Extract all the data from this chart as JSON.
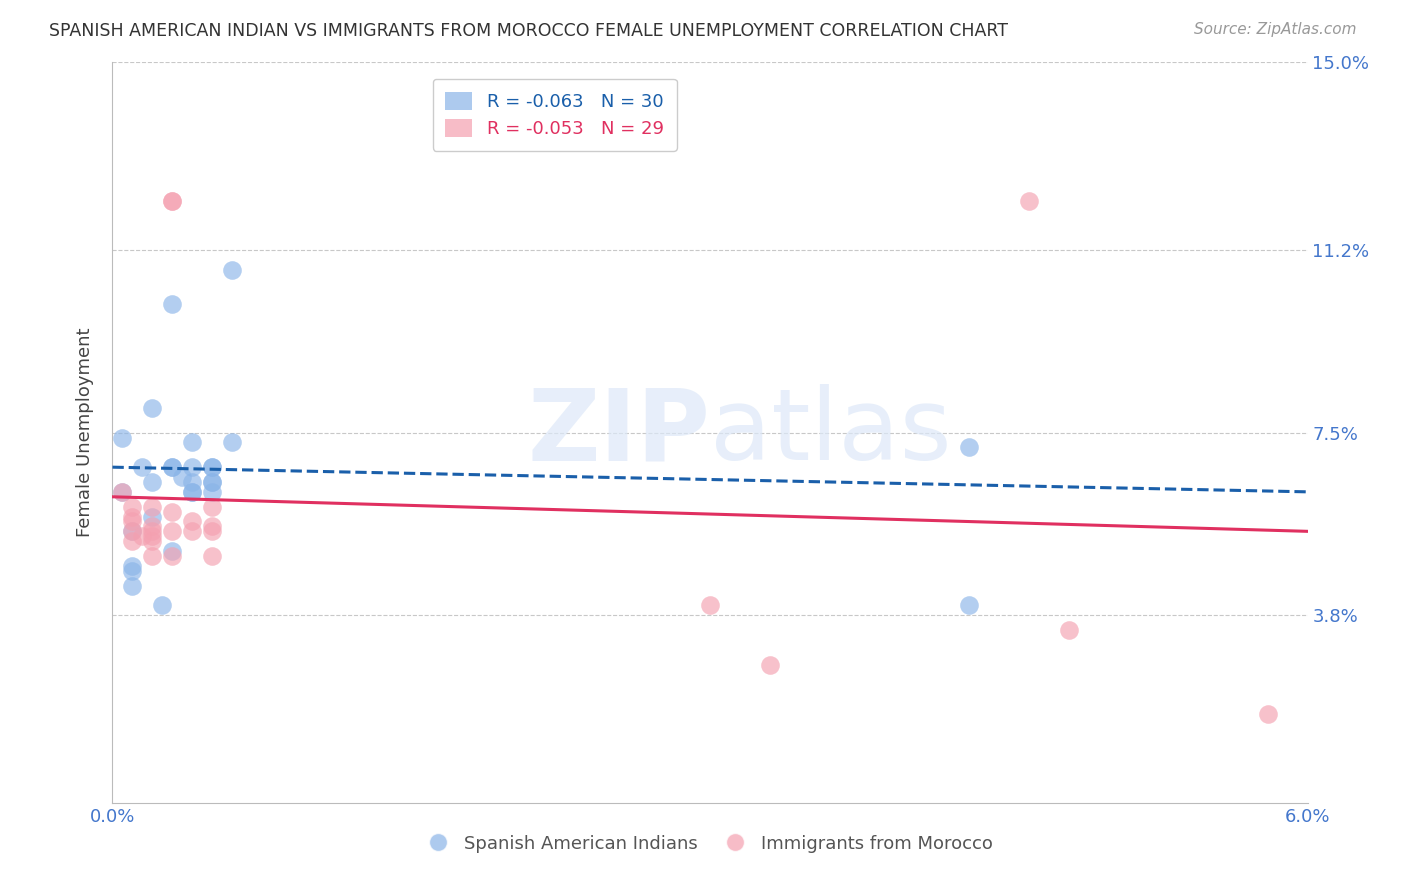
{
  "title": "SPANISH AMERICAN INDIAN VS IMMIGRANTS FROM MOROCCO FEMALE UNEMPLOYMENT CORRELATION CHART",
  "source": "Source: ZipAtlas.com",
  "ylabel": "Female Unemployment",
  "xlim": [
    0.0,
    0.06
  ],
  "ylim": [
    0.0,
    0.15
  ],
  "background_color": "#ffffff",
  "grid_color": "#c8c8c8",
  "watermark_zip": "ZIP",
  "watermark_atlas": "atlas",
  "blue_color": "#8ab4e8",
  "pink_color": "#f4a0b0",
  "blue_line_color": "#1a5faa",
  "pink_line_color": "#e03060",
  "axis_label_color": "#4477cc",
  "legend_label_blue": "Spanish American Indians",
  "legend_label_pink": "Immigrants from Morocco",
  "blue_R": -0.063,
  "blue_N": 30,
  "pink_R": -0.053,
  "pink_N": 29,
  "blue_points": [
    [
      0.0005,
      0.074
    ],
    [
      0.0005,
      0.063
    ],
    [
      0.001,
      0.055
    ],
    [
      0.001,
      0.048
    ],
    [
      0.001,
      0.047
    ],
    [
      0.001,
      0.044
    ],
    [
      0.0015,
      0.068
    ],
    [
      0.002,
      0.058
    ],
    [
      0.002,
      0.08
    ],
    [
      0.002,
      0.065
    ],
    [
      0.0025,
      0.04
    ],
    [
      0.003,
      0.051
    ],
    [
      0.003,
      0.068
    ],
    [
      0.003,
      0.068
    ],
    [
      0.003,
      0.101
    ],
    [
      0.0035,
      0.066
    ],
    [
      0.004,
      0.068
    ],
    [
      0.004,
      0.073
    ],
    [
      0.004,
      0.065
    ],
    [
      0.004,
      0.063
    ],
    [
      0.004,
      0.063
    ],
    [
      0.005,
      0.065
    ],
    [
      0.005,
      0.065
    ],
    [
      0.005,
      0.063
    ],
    [
      0.005,
      0.068
    ],
    [
      0.005,
      0.068
    ],
    [
      0.006,
      0.108
    ],
    [
      0.006,
      0.073
    ],
    [
      0.043,
      0.072
    ],
    [
      0.043,
      0.04
    ]
  ],
  "pink_points": [
    [
      0.0005,
      0.063
    ],
    [
      0.001,
      0.06
    ],
    [
      0.001,
      0.058
    ],
    [
      0.001,
      0.057
    ],
    [
      0.001,
      0.055
    ],
    [
      0.001,
      0.053
    ],
    [
      0.0015,
      0.054
    ],
    [
      0.002,
      0.06
    ],
    [
      0.002,
      0.056
    ],
    [
      0.002,
      0.055
    ],
    [
      0.002,
      0.054
    ],
    [
      0.002,
      0.053
    ],
    [
      0.002,
      0.05
    ],
    [
      0.003,
      0.122
    ],
    [
      0.003,
      0.122
    ],
    [
      0.003,
      0.059
    ],
    [
      0.003,
      0.055
    ],
    [
      0.003,
      0.05
    ],
    [
      0.004,
      0.057
    ],
    [
      0.004,
      0.055
    ],
    [
      0.005,
      0.06
    ],
    [
      0.005,
      0.056
    ],
    [
      0.005,
      0.055
    ],
    [
      0.005,
      0.05
    ],
    [
      0.03,
      0.04
    ],
    [
      0.033,
      0.028
    ],
    [
      0.046,
      0.122
    ],
    [
      0.048,
      0.035
    ],
    [
      0.058,
      0.018
    ]
  ],
  "blue_trend": [
    0.0,
    0.06,
    0.068,
    0.063
  ],
  "pink_trend": [
    0.0,
    0.06,
    0.062,
    0.055
  ]
}
